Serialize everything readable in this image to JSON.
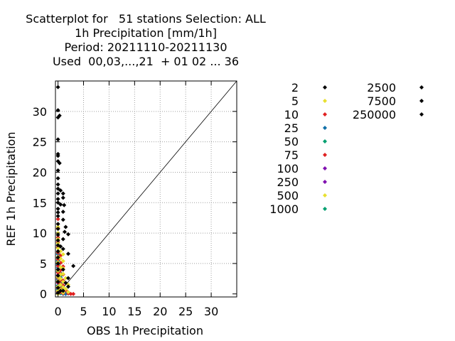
{
  "title_lines": [
    "Scatterplot for   51 stations Selection: ALL",
    "1h Precipitation [mm/1h]",
    "Period: 20211110-20211130",
    "Used  00,03,...,21  + 01 02 ... 36"
  ],
  "chart_data": {
    "type": "scatter",
    "title": "Scatterplot for   51 stations Selection: ALL / 1h Precipitation [mm/1h] / Period: 20211110-20211130 / Used  00,03,...,21  + 01 02 ... 36",
    "xlabel": "OBS 1h Precipitation",
    "ylabel": "REF 1h Precipitation",
    "xlim": [
      -0.5,
      35
    ],
    "ylim": [
      -0.5,
      35
    ],
    "xticks": [
      0,
      5,
      10,
      15,
      20,
      25,
      30
    ],
    "yticks": [
      0,
      5,
      10,
      15,
      20,
      25,
      30
    ],
    "grid": true,
    "diagonal": true,
    "legend_title": "",
    "legend": [
      {
        "label": "2",
        "color": "#000000"
      },
      {
        "label": "5",
        "color": "#e8e030"
      },
      {
        "label": "10",
        "color": "#e02020"
      },
      {
        "label": "25",
        "color": "#1070a8"
      },
      {
        "label": "50",
        "color": "#00a070"
      },
      {
        "label": "75",
        "color": "#e02020"
      },
      {
        "label": "100",
        "color": "#8010b0"
      },
      {
        "label": "250",
        "color": "#8010b0"
      },
      {
        "label": "500",
        "color": "#e8e030"
      },
      {
        "label": "1000",
        "color": "#00a070"
      },
      {
        "label": "2500",
        "color": "#000000"
      },
      {
        "label": "7500",
        "color": "#000000"
      },
      {
        "label": "250000",
        "color": "#000000"
      }
    ],
    "series": [
      {
        "color": "#000000",
        "points": [
          [
            0,
            34
          ],
          [
            0,
            30.2
          ],
          [
            0,
            29
          ],
          [
            0.3,
            29.3
          ],
          [
            0,
            25.4
          ],
          [
            0,
            23
          ],
          [
            0,
            22.7
          ],
          [
            0,
            21.8
          ],
          [
            0.3,
            21.5
          ],
          [
            0,
            20.3
          ],
          [
            0,
            19
          ],
          [
            0,
            18
          ],
          [
            0,
            17.3
          ],
          [
            0.5,
            17
          ],
          [
            0,
            16.5
          ],
          [
            1,
            16.5
          ],
          [
            0,
            15.6
          ],
          [
            1,
            15.8
          ],
          [
            0,
            15
          ],
          [
            0.5,
            14.7
          ],
          [
            1.2,
            14.6
          ],
          [
            0,
            14
          ],
          [
            0,
            13.4
          ],
          [
            1,
            13.5
          ],
          [
            0,
            12.8
          ],
          [
            1,
            12.2
          ],
          [
            0,
            11.5
          ],
          [
            1.5,
            11
          ],
          [
            0,
            10.7
          ],
          [
            1.3,
            10.2
          ],
          [
            0,
            9.7
          ],
          [
            2,
            9.8
          ],
          [
            0,
            8.8
          ],
          [
            1,
            9
          ],
          [
            0,
            8
          ],
          [
            0.5,
            7.8
          ],
          [
            0,
            7
          ],
          [
            1,
            7.4
          ],
          [
            0,
            6
          ],
          [
            2,
            6.6
          ],
          [
            0,
            5
          ],
          [
            3,
            4.6
          ],
          [
            0,
            4
          ],
          [
            1,
            4
          ],
          [
            0,
            3
          ],
          [
            2,
            2.6
          ],
          [
            0,
            2
          ],
          [
            1.5,
            1.8
          ],
          [
            0,
            1
          ],
          [
            2,
            1.2
          ],
          [
            0.5,
            0.5
          ],
          [
            1,
            0.5
          ],
          [
            0,
            0.2
          ]
        ]
      },
      {
        "color": "#e8e030",
        "points": [
          [
            0,
            11
          ],
          [
            0,
            10
          ],
          [
            0,
            9
          ],
          [
            0,
            8.3
          ],
          [
            0,
            7.5
          ],
          [
            0.5,
            7
          ],
          [
            1,
            6.5
          ],
          [
            0,
            6.1
          ],
          [
            0.5,
            5.8
          ],
          [
            0,
            5.2
          ],
          [
            1,
            5.4
          ],
          [
            0.5,
            4.4
          ],
          [
            1,
            4.2
          ],
          [
            0,
            3.8
          ],
          [
            0.5,
            3.2
          ],
          [
            1,
            3.3
          ],
          [
            0,
            2.8
          ],
          [
            0.5,
            2.5
          ],
          [
            1.5,
            2.6
          ],
          [
            0,
            2.1
          ],
          [
            1,
            2
          ],
          [
            0.5,
            1.5
          ],
          [
            2,
            1.5
          ],
          [
            0,
            1.2
          ],
          [
            1,
            1.1
          ],
          [
            0.5,
            0.7
          ],
          [
            1.5,
            0.8
          ],
          [
            0,
            0.5
          ],
          [
            1,
            0.2
          ],
          [
            2,
            0.3
          ],
          [
            0,
            0
          ]
        ]
      },
      {
        "color": "#e02020",
        "points": [
          [
            0,
            12.3
          ],
          [
            0,
            10.8
          ],
          [
            0,
            9.3
          ],
          [
            0,
            8.5
          ],
          [
            0,
            7.7
          ],
          [
            0,
            6.8
          ],
          [
            0.5,
            6.3
          ],
          [
            0,
            5.7
          ],
          [
            0.5,
            5.1
          ],
          [
            0,
            4.6
          ],
          [
            1,
            4.5
          ],
          [
            0.5,
            3.9
          ],
          [
            0,
            3.5
          ],
          [
            0.5,
            3.3
          ],
          [
            1,
            3.2
          ],
          [
            0,
            2.7
          ],
          [
            0.5,
            2.3
          ],
          [
            1,
            2.2
          ],
          [
            0,
            1.9
          ],
          [
            0.5,
            1.6
          ],
          [
            1,
            1.4
          ],
          [
            0,
            1.1
          ],
          [
            0.5,
            0.8
          ],
          [
            1.5,
            0.6
          ],
          [
            0,
            0.4
          ],
          [
            0.5,
            0.3
          ],
          [
            1,
            0.1
          ],
          [
            2,
            0.1
          ],
          [
            2.5,
            0
          ],
          [
            3,
            0
          ]
        ]
      },
      {
        "color": "#1070a8",
        "points": [
          [
            0,
            8
          ],
          [
            0,
            6.5
          ],
          [
            0,
            5.5
          ],
          [
            0,
            4.8
          ],
          [
            0,
            4.3
          ],
          [
            0.5,
            4
          ],
          [
            0,
            3.7
          ],
          [
            0.5,
            3.4
          ],
          [
            0,
            3
          ],
          [
            0.5,
            2.7
          ],
          [
            0,
            2.2
          ],
          [
            0.5,
            1.8
          ],
          [
            0,
            1.4
          ],
          [
            1,
            1.3
          ],
          [
            0.5,
            1
          ],
          [
            0,
            0.6
          ],
          [
            0.5,
            0.3
          ],
          [
            1,
            0
          ],
          [
            1.5,
            0
          ],
          [
            2,
            0.05
          ]
        ]
      },
      {
        "color": "#00a070",
        "points": [
          [
            0,
            7.6
          ],
          [
            0,
            6.7
          ],
          [
            0,
            5.9
          ],
          [
            0,
            5.3
          ],
          [
            0,
            4.7
          ],
          [
            0.5,
            4.4
          ],
          [
            0,
            4
          ],
          [
            0,
            3.6
          ],
          [
            0.5,
            3
          ],
          [
            0,
            2.6
          ],
          [
            0,
            2
          ],
          [
            0.5,
            1.6
          ],
          [
            0,
            1.3
          ],
          [
            0.5,
            0.9
          ],
          [
            0,
            0.7
          ],
          [
            1,
            0.6
          ],
          [
            0.5,
            0.1
          ],
          [
            1,
            0.05
          ],
          [
            1.5,
            0.1
          ]
        ]
      },
      {
        "color": "#8010b0",
        "points": [
          [
            0,
            3.1
          ],
          [
            0,
            2.4
          ],
          [
            0,
            1.8
          ],
          [
            0.5,
            1.3
          ],
          [
            0,
            0.9
          ],
          [
            0.5,
            0.4
          ],
          [
            1,
            0.2
          ],
          [
            0,
            0.1
          ],
          [
            1.5,
            0
          ]
        ]
      }
    ]
  }
}
